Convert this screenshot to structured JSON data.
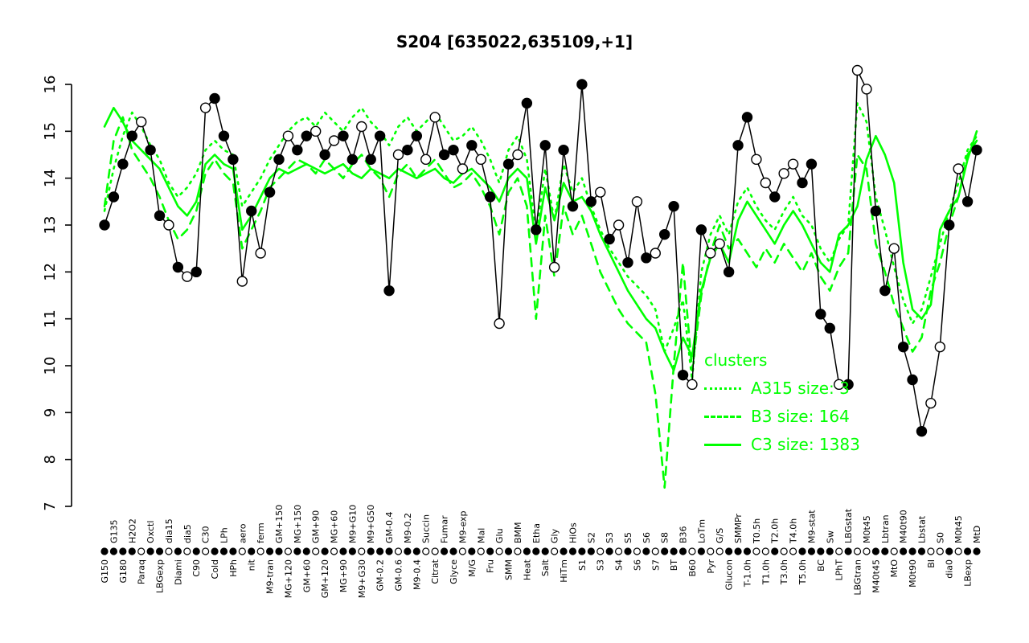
{
  "title": "S204 [635022,635109,+1]",
  "colors": {
    "cluster_green": "#00ff00",
    "series_black": "#000000",
    "point_open_fill": "#ffffff",
    "background": "#ffffff"
  },
  "legend": {
    "title": "clusters",
    "entries": [
      {
        "label": "A315 size: 3",
        "style": "dotted"
      },
      {
        "label": "B3 size: 164",
        "style": "dashed"
      },
      {
        "label": "C3 size: 1383",
        "style": "solid"
      }
    ]
  },
  "chart_data": {
    "type": "line",
    "title": "S204 [635022,635109,+1]",
    "xlabel": "",
    "ylabel": "",
    "ylim": [
      7,
      16
    ],
    "y_ticks": [
      7,
      8,
      9,
      10,
      11,
      12,
      13,
      14,
      15,
      16
    ],
    "grid": false,
    "legend_position": "inside-right",
    "x_label_rotation": 90,
    "x_label_rows": "alternating",
    "categories": [
      "G150",
      "G135",
      "G180",
      "H2O2",
      "Paraq",
      "Oxctl",
      "LBGexp",
      "dia15",
      "Diami",
      "dia5",
      "C90",
      "C30",
      "Cold",
      "LPh",
      "HPh",
      "aero",
      "nit",
      "ferm",
      "M9-tran",
      "GM+150",
      "MG+120",
      "MG+150",
      "GM+60",
      "GM+90",
      "GM+120",
      "MG+60",
      "MG+90",
      "M9+G10",
      "M9+G30",
      "M9+G50",
      "GM-0.2",
      "GM-0.4",
      "GM-0.6",
      "M9-0.2",
      "M9-0.4",
      "Succin",
      "Citrat",
      "Fumar",
      "Glyce",
      "M9-exp",
      "M/G",
      "Mal",
      "Fru",
      "Glu",
      "SMM",
      "BMM",
      "Heat",
      "Etha",
      "Salt",
      "Gly",
      "HiTm",
      "HiOs",
      "S1",
      "S2",
      "S3",
      "S3",
      "S4",
      "S5",
      "S6",
      "S6",
      "S7",
      "S8",
      "BT",
      "B36",
      "B60",
      "LoTm",
      "Pyr",
      "G/S",
      "Glucon",
      "SMMPr",
      "T-1.0h",
      "T0.5h",
      "T1.0h",
      "T2.0h",
      "T3.0h",
      "T4.0h",
      "T5.0h",
      "M9-stat",
      "BC",
      "Sw",
      "LPhT",
      "LBGstat",
      "LBGtran",
      "M0t45",
      "M40t45",
      "Lbtran",
      "MtO",
      "M40t90",
      "M0t90",
      "Lbstat",
      "BI",
      "S0",
      "dia0",
      "M0t45",
      "LBexp",
      "MtD"
    ],
    "marker_fill": [
      "filled",
      "filled",
      "filled",
      "filled",
      "open",
      "filled",
      "filled",
      "open",
      "filled",
      "open",
      "filled",
      "open",
      "filled",
      "filled",
      "filled",
      "open",
      "filled",
      "open",
      "filled",
      "filled",
      "open",
      "filled",
      "filled",
      "open",
      "filled",
      "open",
      "filled",
      "filled",
      "open",
      "filled",
      "filled",
      "filled",
      "open",
      "filled",
      "filled",
      "open",
      "open",
      "filled",
      "filled",
      "open",
      "filled",
      "open",
      "filled",
      "open",
      "filled",
      "open",
      "filled",
      "filled",
      "filled",
      "open",
      "filled",
      "filled",
      "filled",
      "filled",
      "open",
      "filled",
      "open",
      "filled",
      "open",
      "filled",
      "open",
      "filled",
      "filled",
      "filled",
      "open",
      "filled",
      "open",
      "open",
      "filled",
      "filled",
      "filled",
      "open",
      "open",
      "filled",
      "open",
      "open",
      "filled",
      "filled",
      "filled",
      "filled",
      "open",
      "filled",
      "open",
      "open",
      "filled",
      "filled",
      "open",
      "filled",
      "filled",
      "filled",
      "open",
      "open",
      "filled",
      "open",
      "filled",
      "filled"
    ],
    "series": [
      {
        "name": "S204 expression",
        "color": "#000000",
        "style": "solid",
        "markers": true,
        "values": [
          13.0,
          13.6,
          14.3,
          14.9,
          15.2,
          14.6,
          13.2,
          13.0,
          12.1,
          11.9,
          12.0,
          15.5,
          15.7,
          14.9,
          14.4,
          11.8,
          13.3,
          12.4,
          13.7,
          14.4,
          14.9,
          14.6,
          14.9,
          15.0,
          14.5,
          14.8,
          14.9,
          14.4,
          15.1,
          14.4,
          14.9,
          11.6,
          14.5,
          14.6,
          14.9,
          14.4,
          15.3,
          14.5,
          14.6,
          14.2,
          14.7,
          14.4,
          13.6,
          10.9,
          14.3,
          14.5,
          15.6,
          12.9,
          14.7,
          12.1,
          14.6,
          13.4,
          16.0,
          13.5,
          13.7,
          12.7,
          13.0,
          12.2,
          13.5,
          12.3,
          12.4,
          12.8,
          13.4,
          9.8,
          9.6,
          12.9,
          12.4,
          12.6,
          12.0,
          14.7,
          15.3,
          14.4,
          13.9,
          13.6,
          14.1,
          14.3,
          13.9,
          14.3,
          11.1,
          10.8,
          9.6,
          9.6,
          16.3,
          15.9,
          13.3,
          11.6,
          12.5,
          10.4,
          9.7,
          8.6,
          9.2,
          10.4,
          13.0,
          14.2,
          13.5,
          14.6
        ]
      },
      {
        "name": "A315 size: 3",
        "color": "#00ff00",
        "style": "dotted",
        "markers": false,
        "values": [
          13.3,
          14.2,
          14.9,
          15.4,
          15.1,
          14.7,
          14.4,
          13.9,
          13.6,
          13.8,
          14.1,
          14.6,
          14.8,
          14.6,
          14.5,
          13.4,
          13.7,
          14.0,
          14.4,
          14.7,
          15.0,
          15.2,
          15.3,
          15.1,
          15.4,
          15.2,
          15.0,
          15.3,
          15.5,
          15.2,
          15.0,
          14.7,
          15.1,
          15.3,
          15.0,
          15.2,
          15.4,
          15.1,
          14.8,
          14.9,
          15.1,
          14.8,
          14.4,
          13.9,
          14.6,
          14.9,
          14.4,
          12.8,
          14.2,
          13.1,
          14.3,
          13.7,
          14.0,
          13.4,
          12.9,
          12.5,
          12.2,
          11.9,
          11.7,
          11.5,
          11.2,
          10.3,
          10.8,
          11.4,
          9.7,
          12.0,
          12.8,
          13.2,
          12.8,
          13.5,
          13.8,
          13.4,
          13.1,
          12.9,
          13.3,
          13.6,
          13.2,
          13.0,
          12.5,
          12.2,
          12.7,
          13.0,
          15.6,
          15.2,
          13.6,
          12.9,
          12.1,
          11.4,
          10.9,
          11.2,
          11.9,
          12.6,
          13.3,
          13.9,
          14.6,
          14.9
        ]
      },
      {
        "name": "B3 size: 164",
        "color": "#00ff00",
        "style": "dashed",
        "markers": false,
        "values": [
          13.4,
          14.8,
          15.3,
          14.6,
          14.3,
          14.0,
          13.6,
          13.1,
          12.7,
          12.9,
          13.3,
          14.1,
          14.4,
          14.1,
          13.9,
          12.5,
          12.9,
          13.3,
          13.8,
          14.0,
          14.2,
          14.4,
          14.3,
          14.1,
          14.4,
          14.2,
          14.0,
          14.3,
          14.5,
          14.2,
          14.0,
          13.6,
          14.1,
          14.3,
          14.0,
          14.2,
          14.4,
          14.1,
          13.8,
          13.9,
          14.1,
          13.8,
          13.4,
          12.8,
          13.7,
          14.0,
          13.4,
          11.0,
          13.2,
          11.9,
          13.4,
          12.8,
          13.2,
          12.6,
          12.0,
          11.6,
          11.2,
          10.9,
          10.7,
          10.5,
          9.4,
          7.4,
          10.0,
          12.2,
          9.9,
          11.5,
          12.4,
          13.0,
          12.5,
          12.7,
          12.4,
          12.1,
          12.5,
          12.2,
          12.6,
          12.3,
          12.0,
          12.4,
          11.9,
          11.6,
          12.1,
          12.4,
          14.5,
          14.2,
          12.6,
          12.0,
          11.3,
          10.8,
          10.3,
          10.6,
          11.6,
          12.2,
          13.0,
          13.6,
          14.5,
          14.8
        ]
      },
      {
        "name": "C3 size: 1383",
        "color": "#00ff00",
        "style": "solid",
        "markers": false,
        "values": [
          15.1,
          15.5,
          15.2,
          14.8,
          14.6,
          14.4,
          14.2,
          13.8,
          13.4,
          13.2,
          13.5,
          14.3,
          14.5,
          14.3,
          14.2,
          12.9,
          13.2,
          13.6,
          14.0,
          14.2,
          14.1,
          14.2,
          14.3,
          14.2,
          14.1,
          14.2,
          14.3,
          14.1,
          14.0,
          14.2,
          14.1,
          14.0,
          14.2,
          14.1,
          14.0,
          14.1,
          14.2,
          14.0,
          13.9,
          14.1,
          14.2,
          14.0,
          13.8,
          13.5,
          14.0,
          14.2,
          14.0,
          12.6,
          13.8,
          13.1,
          13.9,
          13.5,
          13.6,
          13.3,
          12.8,
          12.4,
          12.0,
          11.6,
          11.3,
          11.0,
          10.8,
          10.3,
          9.9,
          10.6,
          10.2,
          11.6,
          12.3,
          12.6,
          12.2,
          13.1,
          13.5,
          13.2,
          12.9,
          12.6,
          13.0,
          13.3,
          13.0,
          12.6,
          12.2,
          12.0,
          12.8,
          13.0,
          13.4,
          14.4,
          14.9,
          14.5,
          13.9,
          12.2,
          11.2,
          11.0,
          11.3,
          12.9,
          13.3,
          13.6,
          14.4,
          15.0
        ]
      }
    ]
  }
}
